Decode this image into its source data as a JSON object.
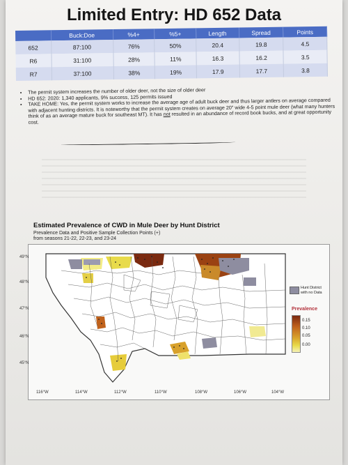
{
  "title": "Limited Entry: HD 652 Data",
  "table": {
    "headers": [
      "",
      "Buck:Doe",
      "%4+",
      "%5+",
      "Length",
      "Spread",
      "Points"
    ],
    "rows": [
      [
        "652",
        "87:100",
        "76%",
        "50%",
        "20.4",
        "19.8",
        "4.5"
      ],
      [
        "R6",
        "31:100",
        "28%",
        "11%",
        "16.3",
        "16.2",
        "3.5"
      ],
      [
        "R7",
        "37:100",
        "38%",
        "19%",
        "17.9",
        "17.7",
        "3.8"
      ]
    ]
  },
  "bullets": {
    "b1": "The permit system increases the number of older deer, not the size of older deer",
    "b2": "HD 652: 2020: 1,340 applicants, 9% success, 125 permits issued",
    "b3_before": "TAKE HOME: Yes, the permit system works to increase the average age of adult buck deer and thus larger antlers on average compared with adjacent hunting districts.  It is noteworthy that the permit system creates on average 20\" wide 4-5 point mule deer (what many hunters think of as an average mature buck for southeast MT).  It has ",
    "b3_not": "not",
    "b3_after": " resulted in an abundance of record book bucks, and at great opportunity cost."
  },
  "map": {
    "title": "Estimated Prevalence of CWD in Mule Deer by Hunt District",
    "subtitle1": "Prevalence Data and Positive Sample Collection Points (+)",
    "subtitle2": "from seasons 21-22, 22-23, and 23-24",
    "lat_labels": [
      "49°N",
      "48°N",
      "47°N",
      "46°N",
      "45°N"
    ],
    "lon_labels": [
      "116°W",
      "114°W",
      "112°W",
      "110°W",
      "108°W",
      "106°W",
      "104°W"
    ],
    "legend": {
      "nodata_line1": "Hunt District",
      "nodata_line2": "with no Data",
      "title": "Prevalence",
      "ticks": [
        "0.15",
        "0.10",
        "0.05",
        "0.00"
      ],
      "colors": {
        "high": "#7a2a10",
        "mid": "#d8a12b",
        "low": "#e8db4a",
        "nodata": "#8e8da0"
      }
    }
  }
}
